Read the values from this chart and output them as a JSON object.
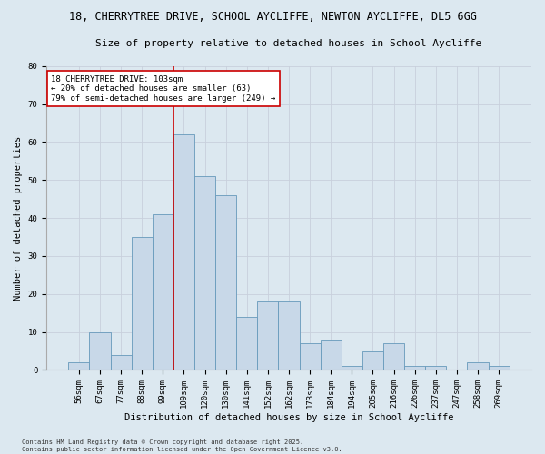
{
  "title_line1": "18, CHERRYTREE DRIVE, SCHOOL AYCLIFFE, NEWTON AYCLIFFE, DL5 6GG",
  "title_line2": "Size of property relative to detached houses in School Aycliffe",
  "xlabel": "Distribution of detached houses by size in School Aycliffe",
  "ylabel": "Number of detached properties",
  "categories": [
    "56sqm",
    "67sqm",
    "77sqm",
    "88sqm",
    "99sqm",
    "109sqm",
    "120sqm",
    "130sqm",
    "141sqm",
    "152sqm",
    "162sqm",
    "173sqm",
    "184sqm",
    "194sqm",
    "205sqm",
    "216sqm",
    "226sqm",
    "237sqm",
    "247sqm",
    "258sqm",
    "269sqm"
  ],
  "values": [
    2,
    10,
    4,
    35,
    41,
    62,
    51,
    46,
    14,
    18,
    18,
    7,
    8,
    1,
    5,
    7,
    1,
    1,
    0,
    2,
    1
  ],
  "bar_color": "#c8d8e8",
  "bar_edge_color": "#6699bb",
  "vline_x": 4.5,
  "vline_color": "#cc0000",
  "annotation_text": "18 CHERRYTREE DRIVE: 103sqm\n← 20% of detached houses are smaller (63)\n79% of semi-detached houses are larger (249) →",
  "annotation_box_color": "#ffffff",
  "annotation_box_edge": "#cc0000",
  "ylim": [
    0,
    80
  ],
  "yticks": [
    0,
    10,
    20,
    30,
    40,
    50,
    60,
    70,
    80
  ],
  "grid_color": "#c8d0dc",
  "bg_color": "#dce8f0",
  "footer_text": "Contains HM Land Registry data © Crown copyright and database right 2025.\nContains public sector information licensed under the Open Government Licence v3.0.",
  "title_fontsize": 8.5,
  "subtitle_fontsize": 8.0,
  "axis_label_fontsize": 7.5,
  "tick_fontsize": 6.5,
  "annotation_fontsize": 6.5,
  "footer_fontsize": 5.0
}
